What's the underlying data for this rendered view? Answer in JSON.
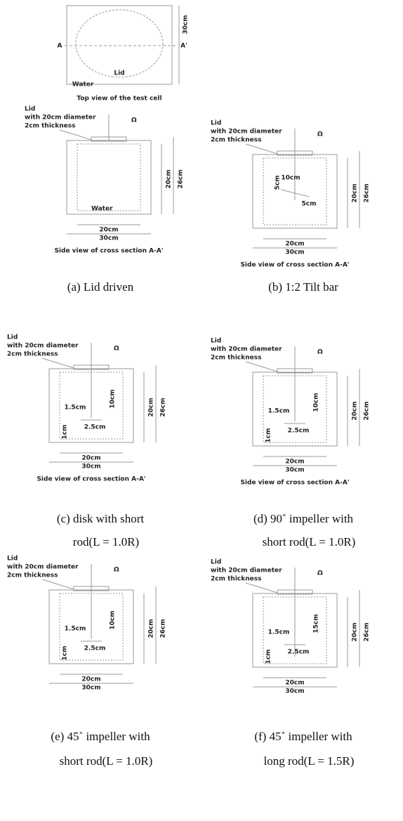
{
  "top_view": {
    "labels": {
      "a": "A",
      "a_prime": "A'",
      "size": "30cm",
      "lid": "Lid",
      "water": "Water"
    },
    "caption": "Top view of the test cell"
  },
  "panels": [
    {
      "lid": "Lid",
      "lid_desc": [
        "with 20cm diameter",
        "2cm thickness"
      ],
      "omega": "Ω",
      "dims": [
        "20cm",
        "26cm",
        "20cm",
        "30cm"
      ],
      "water": "Water",
      "view": "Side view of cross section A-A'",
      "caption": [
        "(a) Lid driven"
      ]
    },
    {
      "lid": "Lid",
      "lid_desc": [
        "with 20cm diameter",
        "2cm thickness"
      ],
      "omega": "Ω",
      "dims": [
        "5cm",
        "10cm",
        "5cm",
        "20cm",
        "26cm",
        "20cm",
        "30cm"
      ],
      "view": "Side view of cross section A-A'",
      "caption": [
        "(b) 1:2 Tilt bar"
      ]
    },
    {
      "lid": "Lid",
      "lid_desc": [
        "with 20cm diameter",
        "2cm thickness"
      ],
      "omega": "Ω",
      "dims": [
        "1.5cm",
        "10cm",
        "1cm",
        "2.5cm",
        "20cm",
        "26cm",
        "20cm",
        "30cm"
      ],
      "view": "Side view of cross section A-A'",
      "caption": [
        "(c) disk with short",
        "rod(L = 1.0R)"
      ]
    },
    {
      "lid": "Lid",
      "lid_desc": [
        "with 20cm diameter",
        "2cm thickness"
      ],
      "omega": "Ω",
      "dims": [
        "1.5cm",
        "10cm",
        "1cm",
        "2.5cm",
        "20cm",
        "26cm",
        "20cm",
        "30cm"
      ],
      "view": "Side view of cross section A-A'",
      "caption": [
        "(d) 90˚ impeller with",
        "short rod(L = 1.0R)"
      ]
    },
    {
      "lid": "Lid",
      "lid_desc": [
        "with 20cm diameter",
        "2cm thickness"
      ],
      "omega": "Ω",
      "dims": [
        "1.5cm",
        "10cm",
        "1cm",
        "2.5cm",
        "20cm",
        "26cm",
        "20cm",
        "30cm"
      ],
      "caption": [
        "(e) 45˚ impeller with",
        "short rod(L = 1.0R)"
      ]
    },
    {
      "lid": "Lid",
      "lid_desc": [
        "with 20cm diameter",
        "2cm thickness"
      ],
      "omega": "Ω",
      "dims": [
        "1.5cm",
        "15cm",
        "1cm",
        "2.5cm",
        "20cm",
        "26cm",
        "20cm",
        "30cm"
      ],
      "caption": [
        "(f) 45˚ impeller with",
        "long rod(L = 1.5R)"
      ]
    }
  ]
}
